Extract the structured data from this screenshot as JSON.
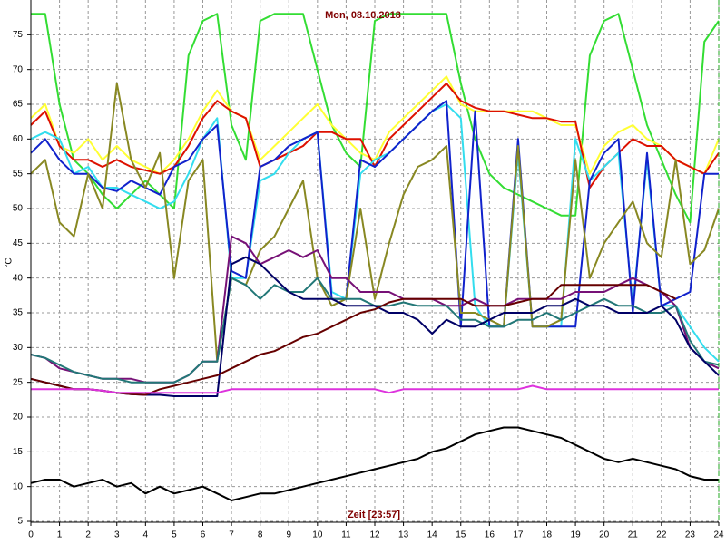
{
  "chart_data": {
    "type": "line",
    "title": "Mon, 08.10.2018",
    "x_label": "Zeit [23:57]",
    "y_label": "°C",
    "grid": true,
    "xlim": [
      0,
      24
    ],
    "ylim": [
      5,
      80
    ],
    "xticks": [
      0,
      1,
      2,
      3,
      4,
      5,
      6,
      7,
      8,
      9,
      10,
      11,
      12,
      13,
      14,
      15,
      16,
      17,
      18,
      19,
      20,
      21,
      22,
      23,
      24
    ],
    "yticks": [
      5,
      10,
      15,
      20,
      25,
      30,
      35,
      40,
      45,
      50,
      55,
      60,
      65,
      70,
      75
    ],
    "x": [
      0,
      0.5,
      1,
      1.5,
      2,
      2.5,
      3,
      3.5,
      4,
      4.5,
      5,
      5.5,
      6,
      6.5,
      7,
      7.5,
      8,
      8.5,
      9,
      9.5,
      10,
      10.5,
      11,
      11.5,
      12,
      12.5,
      13,
      13.5,
      14,
      14.5,
      15,
      15.5,
      16,
      16.5,
      17,
      17.5,
      18,
      18.5,
      19,
      19.5,
      20,
      20.5,
      21,
      21.5,
      22,
      22.5,
      23,
      23.5,
      24
    ],
    "series": [
      {
        "color": "#33dd33",
        "values": [
          78,
          78,
          65,
          57,
          55,
          52,
          50,
          52,
          54,
          52,
          50,
          72,
          77,
          78,
          62,
          57,
          77,
          78,
          78,
          78,
          70,
          62,
          58,
          56,
          77,
          78,
          78,
          78,
          78,
          78,
          68,
          60,
          55,
          53,
          52,
          51,
          50,
          49,
          49,
          72,
          77,
          78,
          70,
          62,
          57,
          52,
          48,
          74,
          77
        ]
      },
      {
        "color": "#ffff33",
        "values": [
          63,
          65,
          59,
          58,
          60,
          57,
          59,
          57,
          56,
          55,
          57,
          60,
          64,
          67,
          64,
          63,
          57,
          59,
          61,
          63,
          65,
          62,
          60,
          58,
          57,
          61,
          63,
          65,
          67,
          69,
          65,
          64,
          64,
          64,
          64,
          64,
          63,
          62,
          62,
          55,
          59,
          61,
          62,
          60,
          59,
          57,
          56,
          55,
          60
        ]
      },
      {
        "color": "#dd1100",
        "values": [
          62,
          64,
          59,
          57,
          57,
          56,
          57,
          56,
          55.5,
          55,
          56,
          59,
          63,
          65.5,
          64,
          63,
          56,
          57,
          58,
          59,
          61,
          61,
          60,
          60,
          56,
          60,
          62,
          64,
          66,
          68,
          65.5,
          64.5,
          64,
          64,
          63.5,
          63,
          63,
          62.5,
          62.5,
          53,
          56,
          58,
          60,
          59,
          59,
          57,
          56,
          55,
          58
        ]
      },
      {
        "color": "#33ddee",
        "values": [
          60,
          61,
          60,
          55,
          56,
          53,
          53,
          52,
          51,
          50,
          51,
          55,
          60,
          63,
          40,
          40,
          54,
          55,
          58,
          60,
          61,
          38,
          37,
          55,
          57,
          58,
          60,
          62,
          64,
          65,
          63,
          36,
          33,
          33,
          58,
          33,
          33,
          33,
          60,
          54,
          56,
          58,
          36,
          57,
          36,
          36,
          33,
          30,
          28
        ]
      },
      {
        "color": "#1122cc",
        "values": [
          58,
          60,
          57,
          55,
          55,
          53,
          52.5,
          54,
          53,
          52,
          56,
          57,
          60,
          62,
          41,
          40,
          56,
          57,
          59,
          60,
          61,
          37,
          37,
          57,
          56,
          58,
          60,
          62,
          64,
          65.5,
          33,
          64,
          33,
          33,
          60,
          33,
          33,
          33,
          33,
          54,
          58,
          60,
          35,
          58,
          36,
          37,
          38,
          55,
          55
        ]
      },
      {
        "color": "#888822",
        "values": [
          55,
          57,
          48,
          46,
          55,
          50,
          68,
          57,
          53,
          58,
          40,
          54,
          57,
          28,
          40,
          39,
          44,
          46,
          50,
          54,
          40,
          36,
          37,
          50,
          37,
          45,
          52,
          56,
          57,
          59,
          35,
          35,
          34,
          33,
          59,
          33,
          33,
          34,
          57,
          40,
          45,
          48,
          51,
          45,
          43,
          57,
          42,
          44,
          50
        ]
      },
      {
        "color": "#771177",
        "values": [
          29,
          28.5,
          27,
          26.5,
          26,
          25.5,
          25.5,
          25.5,
          25,
          25,
          25,
          26,
          28,
          28,
          46,
          45,
          42,
          43,
          44,
          43,
          44,
          40,
          40,
          38,
          38,
          38,
          37,
          37,
          37,
          36,
          36,
          37,
          36,
          36,
          37,
          37,
          37,
          37,
          38,
          38,
          38,
          39,
          40,
          39,
          38,
          36,
          30,
          28,
          27
        ]
      },
      {
        "color": "#227777",
        "values": [
          29,
          28.5,
          27.5,
          26.5,
          26,
          25.5,
          25.5,
          25,
          25,
          25,
          25,
          26,
          28,
          28,
          40,
          39,
          37,
          39,
          38,
          38,
          40,
          37,
          37,
          37,
          36,
          36,
          36.5,
          36,
          36,
          36,
          34,
          34,
          33,
          33,
          34,
          34,
          35,
          34,
          35,
          36,
          37,
          36,
          36,
          35,
          35,
          36,
          31,
          28,
          27.5
        ]
      },
      {
        "color": "#000066",
        "values": [
          25.5,
          25,
          24.5,
          24,
          24,
          23.8,
          23.5,
          23.3,
          23.2,
          23.2,
          23,
          23,
          23,
          23,
          42,
          43,
          42,
          40,
          38,
          37,
          37,
          37,
          36,
          36,
          36,
          35,
          35,
          34,
          32,
          34,
          33,
          33,
          34,
          35,
          35,
          35,
          36,
          36,
          37,
          36,
          36,
          35,
          35,
          35,
          36,
          34,
          30,
          28,
          26
        ]
      },
      {
        "color": "#660000",
        "values": [
          25.5,
          25,
          24.5,
          24,
          24,
          23.8,
          23.5,
          23.3,
          23.2,
          24,
          24.5,
          25,
          25.5,
          26,
          27,
          28,
          29,
          29.5,
          30.5,
          31.5,
          32,
          33,
          34,
          35,
          35.5,
          36.5,
          37,
          37,
          37,
          37,
          37,
          36,
          36,
          36,
          36.5,
          37,
          37,
          39,
          39,
          39,
          39,
          39,
          39,
          39,
          38,
          37,
          null,
          null,
          null
        ]
      },
      {
        "color": "#dd33dd",
        "values": [
          24,
          24,
          24,
          24,
          24,
          23.8,
          23.5,
          23.5,
          23.5,
          23.5,
          23.5,
          23.5,
          23.5,
          23.5,
          24,
          24,
          24,
          24,
          24,
          24,
          24,
          24,
          24,
          24,
          24,
          23.5,
          24,
          24,
          24,
          24,
          24,
          24,
          24,
          24,
          24,
          24.5,
          24,
          24,
          24,
          24,
          24,
          24,
          24,
          24,
          24,
          24,
          24,
          24,
          24
        ]
      },
      {
        "color": "#000000",
        "values": [
          10.5,
          11,
          11,
          10,
          10.5,
          11,
          10,
          10.5,
          9,
          10,
          9,
          9.5,
          10,
          9,
          8,
          8.5,
          9,
          9,
          9.5,
          10,
          10.5,
          11,
          11.5,
          12,
          12.5,
          13,
          13.5,
          14,
          15,
          15.5,
          16.5,
          17.5,
          18,
          18.5,
          18.5,
          18,
          17.5,
          17,
          16,
          15,
          14,
          13.5,
          14,
          13.5,
          13,
          12.5,
          11.5,
          11,
          11
        ]
      }
    ]
  }
}
